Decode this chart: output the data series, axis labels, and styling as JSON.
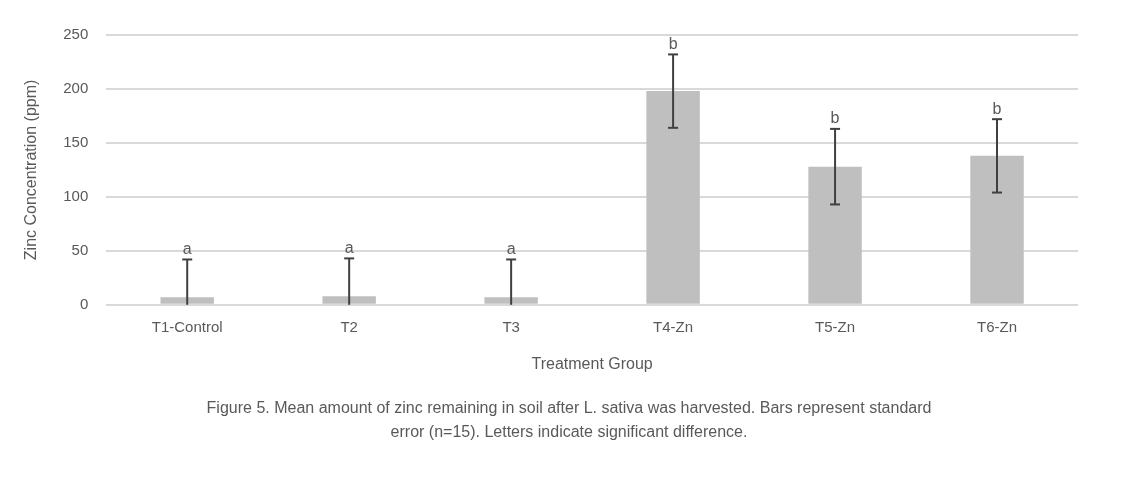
{
  "chart_data": {
    "type": "bar",
    "xlabel": "Treatment Group",
    "ylabel": "Zinc Concentration (ppm)",
    "categories": [
      "T1-Control",
      "T2",
      "T3",
      "T4-Zn",
      "T5-Zn",
      "T6-Zn"
    ],
    "values": [
      7,
      8,
      7,
      198,
      128,
      138
    ],
    "errors": [
      [
        0,
        42
      ],
      [
        0,
        43
      ],
      [
        0,
        42
      ],
      34,
      35,
      34
    ],
    "color": "#bfbfbf",
    "ylim": [
      0,
      250
    ],
    "yticks": [
      0,
      50,
      100,
      150,
      200,
      250
    ],
    "grid": "y",
    "legend": false,
    "annotations": [
      {
        "text": "a",
        "x": "T1-Control",
        "y": 42
      },
      {
        "text": "a",
        "x": "T2",
        "y": 43
      },
      {
        "text": "a",
        "x": "T3",
        "y": 42
      },
      {
        "text": "b",
        "x": "T4-Zn",
        "y": 232
      },
      {
        "text": "b",
        "x": "T5-Zn",
        "y": 163
      },
      {
        "text": "b",
        "x": "T6-Zn",
        "y": 172
      },
      "Figure 5. Mean amount of zinc remaining in soil after L. sativa was harvested. Bars represent standard error (n=15). Letters indicate significant difference."
    ]
  }
}
